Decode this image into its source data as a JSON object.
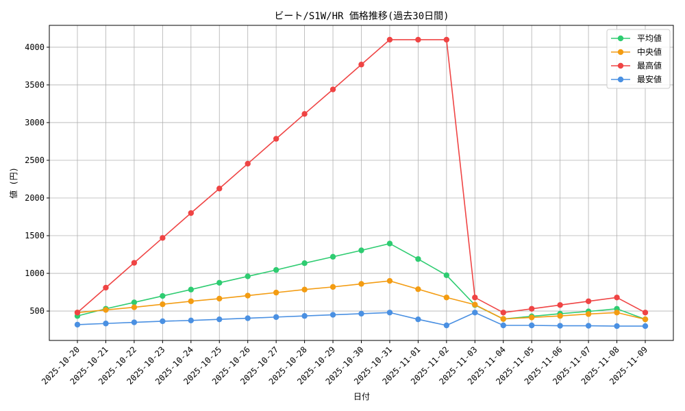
{
  "chart_data": {
    "type": "line",
    "title": "ビート/S1W/HR 価格推移(過去30日間)",
    "xlabel": "日付",
    "ylabel": "値 (円)",
    "categories": [
      "2025-10-20",
      "2025-10-21",
      "2025-10-22",
      "2025-10-23",
      "2025-10-24",
      "2025-10-25",
      "2025-10-26",
      "2025-10-27",
      "2025-10-28",
      "2025-10-29",
      "2025-10-30",
      "2025-10-31",
      "2025-11-01",
      "2025-11-02",
      "2025-11-03",
      "2025-11-04",
      "2025-11-05",
      "2025-11-06",
      "2025-11-07",
      "2025-11-08",
      "2025-11-09"
    ],
    "yticks": [
      500,
      1000,
      1500,
      2000,
      2500,
      3000,
      3500,
      4000
    ],
    "ylim": [
      110,
      4290
    ],
    "grid": true,
    "legend": "top-right",
    "series": [
      {
        "name": "平均値",
        "color": "#2ecc71",
        "values": [
          435,
          530,
          615,
          700,
          785,
          875,
          960,
          1045,
          1135,
          1220,
          1305,
          1395,
          1190,
          975,
          580,
          395,
          430,
          465,
          495,
          530,
          390
        ]
      },
      {
        "name": "中央値",
        "color": "#f39c12",
        "values": [
          480,
          515,
          550,
          590,
          630,
          665,
          705,
          745,
          785,
          820,
          860,
          900,
          790,
          680,
          585,
          395,
          415,
          435,
          460,
          480,
          390
        ]
      },
      {
        "name": "最高値",
        "color": "#ef4444",
        "values": [
          480,
          810,
          1140,
          1470,
          1800,
          2125,
          2455,
          2785,
          3115,
          3440,
          3770,
          4100,
          4100,
          4100,
          680,
          480,
          530,
          580,
          630,
          680,
          480
        ]
      },
      {
        "name": "最安値",
        "color": "#4a90e2",
        "values": [
          320,
          335,
          350,
          365,
          375,
          390,
          405,
          420,
          435,
          450,
          465,
          480,
          390,
          310,
          480,
          310,
          310,
          305,
          305,
          300,
          300
        ]
      }
    ]
  }
}
